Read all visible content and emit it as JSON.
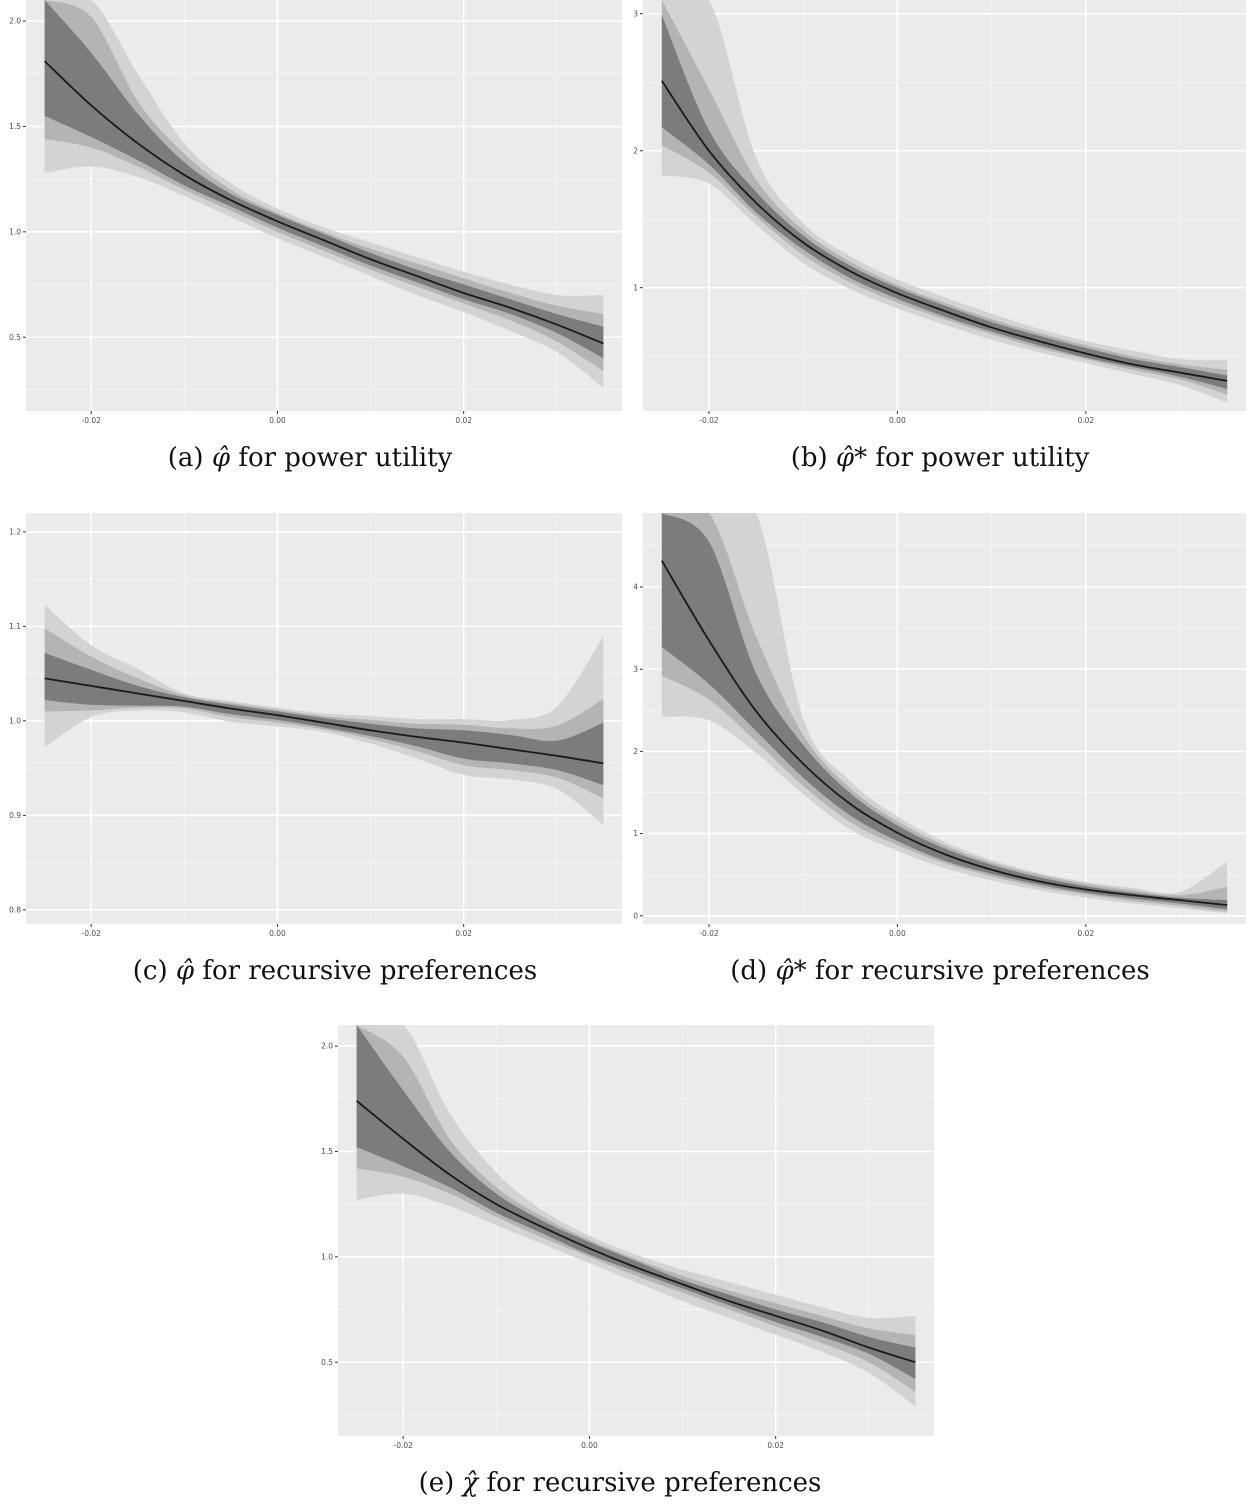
{
  "palette": {
    "panel": "#ebebeb",
    "grid_major": "#ffffff",
    "grid_minor": "#f5f5f5",
    "band_outer": "#d3d3d3",
    "band_middle": "#b4b4b4",
    "band_inner": "#7c7c7c",
    "line": "#1a1a1a",
    "tick_text": "#4d4d4d"
  },
  "captions": {
    "a": {
      "prefix": "(a)",
      "symbol": "φ̂",
      "rest": " for power utility"
    },
    "b": {
      "prefix": "(b)",
      "symbol": "φ̂*",
      "rest": " for power utility"
    },
    "c": {
      "prefix": "(c)",
      "symbol": "φ̂",
      "rest": " for recursive preferences"
    },
    "d": {
      "prefix": "(d)",
      "symbol": "φ̂*",
      "rest": " for recursive preferences"
    },
    "e": {
      "prefix": "(e)",
      "symbol": "χ̂",
      "rest": " for recursive preferences"
    }
  },
  "chart_data": [
    {
      "id": "a",
      "type": "line",
      "x": [
        -0.025,
        -0.02,
        -0.015,
        -0.01,
        -0.005,
        0.0,
        0.005,
        0.01,
        0.015,
        0.02,
        0.025,
        0.03,
        0.035
      ],
      "x_ticks": [
        -0.02,
        0.0,
        0.02
      ],
      "x_tick_labels": [
        "-0.02",
        "0.00",
        "0.02"
      ],
      "y_ticks": [
        0.5,
        1.0,
        1.5,
        2.0
      ],
      "y_tick_labels": [
        "0.5",
        "1.0",
        "1.5",
        "2.0"
      ],
      "xlim": [
        -0.027,
        0.037
      ],
      "ylim": [
        0.15,
        2.1
      ],
      "grid": true,
      "series": [
        {
          "role": "estimate",
          "values": [
            1.81,
            1.6,
            1.42,
            1.27,
            1.15,
            1.05,
            0.96,
            0.87,
            0.79,
            0.71,
            0.64,
            0.56,
            0.47
          ]
        }
      ],
      "bands": [
        {
          "level": "outer",
          "lower": [
            1.28,
            1.31,
            1.26,
            1.17,
            1.07,
            0.97,
            0.88,
            0.79,
            0.7,
            0.62,
            0.53,
            0.43,
            0.26
          ],
          "upper": [
            2.1,
            2.1,
            1.75,
            1.42,
            1.23,
            1.11,
            1.02,
            0.95,
            0.88,
            0.81,
            0.75,
            0.7,
            0.7
          ]
        },
        {
          "level": "middle",
          "lower": [
            1.44,
            1.4,
            1.31,
            1.2,
            1.1,
            1.0,
            0.91,
            0.82,
            0.74,
            0.66,
            0.58,
            0.48,
            0.34
          ],
          "upper": [
            2.1,
            2.02,
            1.62,
            1.37,
            1.2,
            1.09,
            1.0,
            0.92,
            0.85,
            0.78,
            0.71,
            0.65,
            0.61
          ]
        },
        {
          "level": "inner",
          "lower": [
            1.55,
            1.45,
            1.34,
            1.22,
            1.12,
            1.02,
            0.93,
            0.84,
            0.76,
            0.68,
            0.61,
            0.52,
            0.4
          ],
          "upper": [
            2.1,
            1.85,
            1.56,
            1.33,
            1.18,
            1.08,
            0.99,
            0.9,
            0.82,
            0.75,
            0.68,
            0.61,
            0.55
          ]
        }
      ]
    },
    {
      "id": "b",
      "type": "line",
      "x": [
        -0.025,
        -0.02,
        -0.015,
        -0.01,
        -0.005,
        0.0,
        0.005,
        0.01,
        0.015,
        0.02,
        0.025,
        0.03,
        0.035
      ],
      "x_ticks": [
        -0.02,
        0.0,
        0.02
      ],
      "x_tick_labels": [
        "-0.02",
        "0.00",
        "0.02"
      ],
      "y_ticks": [
        1,
        2,
        3
      ],
      "y_tick_labels": [
        "1",
        "2",
        "3"
      ],
      "xlim": [
        -0.027,
        0.037
      ],
      "ylim": [
        0.1,
        3.1
      ],
      "grid": true,
      "series": [
        {
          "role": "estimate",
          "values": [
            2.51,
            2.0,
            1.62,
            1.33,
            1.12,
            0.96,
            0.83,
            0.71,
            0.61,
            0.52,
            0.44,
            0.38,
            0.32
          ]
        }
      ],
      "bands": [
        {
          "level": "outer",
          "lower": [
            1.82,
            1.76,
            1.46,
            1.18,
            0.99,
            0.85,
            0.73,
            0.62,
            0.53,
            0.45,
            0.37,
            0.29,
            0.16
          ],
          "upper": [
            3.1,
            3.1,
            1.95,
            1.47,
            1.23,
            1.06,
            0.93,
            0.81,
            0.7,
            0.61,
            0.54,
            0.48,
            0.47
          ]
        },
        {
          "level": "middle",
          "lower": [
            2.04,
            1.84,
            1.52,
            1.24,
            1.04,
            0.89,
            0.77,
            0.66,
            0.56,
            0.48,
            0.4,
            0.33,
            0.22
          ],
          "upper": [
            3.1,
            2.45,
            1.79,
            1.42,
            1.19,
            1.02,
            0.89,
            0.77,
            0.67,
            0.58,
            0.5,
            0.44,
            0.4
          ]
        },
        {
          "level": "inner",
          "lower": [
            2.17,
            1.9,
            1.55,
            1.28,
            1.07,
            0.92,
            0.79,
            0.68,
            0.58,
            0.49,
            0.42,
            0.35,
            0.26
          ],
          "upper": [
            2.99,
            2.15,
            1.7,
            1.38,
            1.16,
            1.0,
            0.87,
            0.75,
            0.65,
            0.56,
            0.48,
            0.42,
            0.36
          ]
        }
      ]
    },
    {
      "id": "c",
      "type": "line",
      "x": [
        -0.025,
        -0.02,
        -0.015,
        -0.01,
        -0.005,
        0.0,
        0.005,
        0.01,
        0.015,
        0.02,
        0.025,
        0.03,
        0.035
      ],
      "x_ticks": [
        -0.02,
        0.0,
        0.02
      ],
      "x_tick_labels": [
        "-0.02",
        "0.00",
        "0.02"
      ],
      "y_ticks": [
        0.8,
        0.9,
        1.0,
        1.1,
        1.2
      ],
      "y_tick_labels": [
        "0.8",
        "0.9",
        "1.0",
        "1.1",
        "1.2"
      ],
      "xlim": [
        -0.027,
        0.037
      ],
      "ylim": [
        0.785,
        1.22
      ],
      "grid": true,
      "series": [
        {
          "role": "estimate",
          "values": [
            1.045,
            1.037,
            1.029,
            1.021,
            1.013,
            1.006,
            0.998,
            0.99,
            0.983,
            0.977,
            0.97,
            0.963,
            0.955
          ]
        }
      ],
      "bands": [
        {
          "level": "outer",
          "lower": [
            0.972,
            1.004,
            1.011,
            1.009,
            0.999,
            0.994,
            0.988,
            0.976,
            0.96,
            0.943,
            0.938,
            0.928,
            0.89
          ],
          "upper": [
            1.123,
            1.08,
            1.055,
            1.029,
            1.021,
            1.014,
            1.008,
            1.005,
            1.002,
            1.002,
            1.001,
            1.015,
            1.09
          ]
        },
        {
          "level": "middle",
          "lower": [
            1.01,
            1.011,
            1.014,
            1.013,
            1.004,
            0.998,
            0.991,
            0.981,
            0.968,
            0.953,
            0.948,
            0.94,
            0.918
          ],
          "upper": [
            1.098,
            1.068,
            1.045,
            1.027,
            1.019,
            1.012,
            1.005,
            1.001,
            0.997,
            0.996,
            0.992,
            0.995,
            1.023
          ]
        },
        {
          "level": "inner",
          "lower": [
            1.022,
            1.017,
            1.016,
            1.015,
            1.007,
            1.001,
            0.993,
            0.984,
            0.973,
            0.96,
            0.955,
            0.948,
            0.932
          ],
          "upper": [
            1.072,
            1.054,
            1.037,
            1.025,
            1.017,
            1.01,
            1.003,
            0.997,
            0.992,
            0.99,
            0.985,
            0.979,
            0.998
          ]
        }
      ]
    },
    {
      "id": "d",
      "type": "line",
      "x": [
        -0.025,
        -0.02,
        -0.015,
        -0.01,
        -0.005,
        0.0,
        0.005,
        0.01,
        0.015,
        0.02,
        0.025,
        0.03,
        0.035
      ],
      "x_ticks": [
        -0.02,
        0.0,
        0.02
      ],
      "x_tick_labels": [
        "-0.02",
        "0.00",
        "0.02"
      ],
      "y_ticks": [
        0,
        1,
        2,
        3,
        4
      ],
      "y_tick_labels": [
        "0",
        "1",
        "2",
        "3",
        "4"
      ],
      "xlim": [
        -0.027,
        0.037
      ],
      "ylim": [
        -0.1,
        4.9
      ],
      "grid": true,
      "series": [
        {
          "role": "estimate",
          "values": [
            4.32,
            3.35,
            2.49,
            1.85,
            1.36,
            1.01,
            0.75,
            0.56,
            0.42,
            0.32,
            0.25,
            0.19,
            0.13
          ]
        }
      ],
      "bands": [
        {
          "level": "outer",
          "lower": [
            2.42,
            2.38,
            1.98,
            1.48,
            1.05,
            0.79,
            0.58,
            0.43,
            0.31,
            0.22,
            0.15,
            0.09,
            0.03
          ],
          "upper": [
            4.9,
            4.9,
            4.9,
            2.4,
            1.64,
            1.21,
            0.9,
            0.68,
            0.52,
            0.41,
            0.34,
            0.29,
            0.66
          ]
        },
        {
          "level": "middle",
          "lower": [
            2.92,
            2.63,
            2.12,
            1.58,
            1.14,
            0.86,
            0.64,
            0.48,
            0.35,
            0.26,
            0.18,
            0.12,
            0.05
          ],
          "upper": [
            4.9,
            4.9,
            3.4,
            2.2,
            1.55,
            1.15,
            0.86,
            0.65,
            0.5,
            0.39,
            0.31,
            0.25,
            0.35
          ]
        },
        {
          "level": "inner",
          "lower": [
            3.27,
            2.82,
            2.25,
            1.68,
            1.22,
            0.91,
            0.67,
            0.51,
            0.38,
            0.28,
            0.21,
            0.15,
            0.08
          ],
          "upper": [
            4.9,
            4.55,
            2.95,
            2.08,
            1.49,
            1.1,
            0.82,
            0.62,
            0.47,
            0.36,
            0.28,
            0.22,
            0.19
          ]
        }
      ]
    },
    {
      "id": "e",
      "type": "line",
      "x": [
        -0.025,
        -0.02,
        -0.015,
        -0.01,
        -0.005,
        0.0,
        0.005,
        0.01,
        0.015,
        0.02,
        0.025,
        0.03,
        0.035
      ],
      "x_ticks": [
        -0.02,
        0.0,
        0.02
      ],
      "x_tick_labels": [
        "-0.02",
        "0.00",
        "0.02"
      ],
      "y_ticks": [
        0.5,
        1.0,
        1.5,
        2.0
      ],
      "y_tick_labels": [
        "0.5",
        "1.0",
        "1.5",
        "2.0"
      ],
      "xlim": [
        -0.027,
        0.037
      ],
      "ylim": [
        0.15,
        2.1
      ],
      "grid": true,
      "series": [
        {
          "role": "estimate",
          "values": [
            1.74,
            1.56,
            1.39,
            1.25,
            1.14,
            1.04,
            0.95,
            0.87,
            0.79,
            0.72,
            0.65,
            0.57,
            0.5
          ]
        }
      ],
      "bands": [
        {
          "level": "outer",
          "lower": [
            1.27,
            1.3,
            1.24,
            1.15,
            1.06,
            0.97,
            0.88,
            0.79,
            0.71,
            0.63,
            0.55,
            0.45,
            0.29
          ],
          "upper": [
            2.1,
            2.1,
            1.68,
            1.4,
            1.22,
            1.1,
            1.01,
            0.94,
            0.88,
            0.82,
            0.76,
            0.71,
            0.72
          ]
        },
        {
          "level": "middle",
          "lower": [
            1.42,
            1.38,
            1.3,
            1.19,
            1.09,
            1.0,
            0.91,
            0.83,
            0.75,
            0.67,
            0.59,
            0.5,
            0.36
          ],
          "upper": [
            2.1,
            1.95,
            1.56,
            1.33,
            1.19,
            1.08,
            0.99,
            0.91,
            0.84,
            0.78,
            0.72,
            0.66,
            0.63
          ]
        },
        {
          "level": "inner",
          "lower": [
            1.52,
            1.43,
            1.33,
            1.21,
            1.11,
            1.01,
            0.93,
            0.85,
            0.77,
            0.69,
            0.62,
            0.54,
            0.42
          ],
          "upper": [
            2.1,
            1.79,
            1.5,
            1.3,
            1.17,
            1.07,
            0.98,
            0.89,
            0.82,
            0.75,
            0.69,
            0.62,
            0.57
          ]
        }
      ]
    }
  ]
}
